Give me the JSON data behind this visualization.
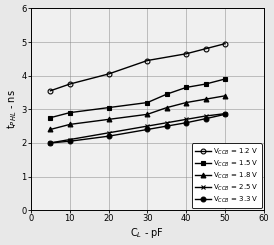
{
  "title": "",
  "xlabel": "C$_L$ - pF",
  "ylabel": "t$_{PHL}$ - ns",
  "xlim": [
    0,
    60
  ],
  "ylim": [
    0,
    6
  ],
  "xticks": [
    0,
    10,
    20,
    30,
    40,
    50,
    60
  ],
  "yticks": [
    0,
    1,
    2,
    3,
    4,
    5,
    6
  ],
  "series": [
    {
      "label": "V$_{CCB}$ = 1.2 V",
      "x": [
        5,
        10,
        20,
        30,
        40,
        45,
        50
      ],
      "y": [
        3.55,
        3.75,
        4.05,
        4.45,
        4.65,
        4.8,
        4.95
      ],
      "marker": "o",
      "fillstyle": "none",
      "color": "black",
      "linewidth": 1.0
    },
    {
      "label": "V$_{CCB}$ = 1.5 V",
      "x": [
        5,
        10,
        20,
        30,
        35,
        40,
        45,
        50
      ],
      "y": [
        2.75,
        2.9,
        3.05,
        3.2,
        3.45,
        3.65,
        3.75,
        3.9
      ],
      "marker": "s",
      "fillstyle": "full",
      "color": "black",
      "linewidth": 1.0
    },
    {
      "label": "V$_{CCB}$ = 1.8 V",
      "x": [
        5,
        10,
        20,
        30,
        35,
        40,
        45,
        50
      ],
      "y": [
        2.4,
        2.55,
        2.7,
        2.85,
        3.05,
        3.2,
        3.3,
        3.4
      ],
      "marker": "^",
      "fillstyle": "full",
      "color": "black",
      "linewidth": 1.0
    },
    {
      "label": "V$_{CCB}$ = 2.5 V",
      "x": [
        5,
        10,
        20,
        30,
        35,
        40,
        45,
        50
      ],
      "y": [
        2.0,
        2.1,
        2.3,
        2.5,
        2.6,
        2.7,
        2.8,
        2.87
      ],
      "marker": "x",
      "fillstyle": "full",
      "color": "black",
      "linewidth": 1.0
    },
    {
      "label": "V$_{CCB}$ = 3.3 V",
      "x": [
        5,
        10,
        20,
        30,
        35,
        40,
        45,
        50
      ],
      "y": [
        2.0,
        2.05,
        2.2,
        2.4,
        2.5,
        2.6,
        2.72,
        2.85
      ],
      "marker": "o",
      "fillstyle": "full",
      "color": "black",
      "linewidth": 1.0
    }
  ],
  "background_color": "#f0f0f0",
  "grid_color": "#888888",
  "figure_bg": "#e8e8e8"
}
